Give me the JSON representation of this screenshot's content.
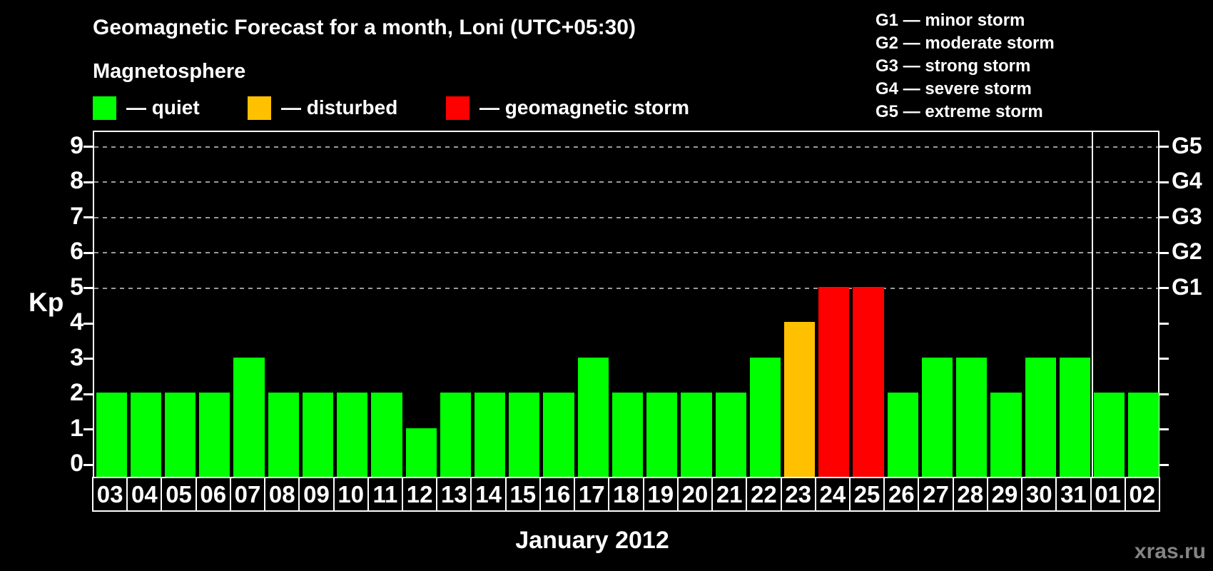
{
  "header": {
    "title": "Geomagnetic Forecast for a month, Loni (UTC+05:30)",
    "subtitle": "Magnetosphere"
  },
  "legend": {
    "items": [
      {
        "name": "quiet",
        "label": "— quiet",
        "color": "#00ff00"
      },
      {
        "name": "disturbed",
        "label": "— disturbed",
        "color": "#ffc000"
      },
      {
        "name": "storm",
        "label": "— geomagnetic storm",
        "color": "#ff0000"
      }
    ]
  },
  "g_scale_legend": {
    "lines": [
      "G1 — minor storm",
      "G2 — moderate storm",
      "G3 — strong storm",
      "G4 — severe storm",
      "G5 — extreme storm"
    ]
  },
  "watermark": "xras.ru",
  "chart_data": {
    "type": "bar",
    "title": "Geomagnetic Forecast for a month, Loni (UTC+05:30)",
    "xlabel": "January 2012",
    "ylabel": "Kp",
    "ylim": [
      0,
      9.4
    ],
    "y_ticks": [
      0,
      1,
      2,
      3,
      4,
      5,
      6,
      7,
      8,
      9
    ],
    "gridlines": [
      5,
      6,
      7,
      8,
      9
    ],
    "grid_style": "dashed",
    "legend_position": "top",
    "right_axis_labels": [
      {
        "text": "G1",
        "kp": 5
      },
      {
        "text": "G2",
        "kp": 6
      },
      {
        "text": "G3",
        "kp": 7
      },
      {
        "text": "G4",
        "kp": 8
      },
      {
        "text": "G5",
        "kp": 9
      }
    ],
    "categories": [
      "03",
      "04",
      "05",
      "06",
      "07",
      "08",
      "09",
      "10",
      "11",
      "12",
      "13",
      "14",
      "15",
      "16",
      "17",
      "18",
      "19",
      "20",
      "21",
      "22",
      "23",
      "24",
      "25",
      "26",
      "27",
      "28",
      "29",
      "30",
      "31",
      "01",
      "02"
    ],
    "values": [
      2,
      2,
      2,
      2,
      3,
      2,
      2,
      2,
      2,
      1,
      2,
      2,
      2,
      2,
      3,
      2,
      2,
      2,
      2,
      3,
      4,
      5,
      5,
      2,
      3,
      3,
      2,
      3,
      3,
      2,
      2
    ],
    "month_boundary_index": 29,
    "color_rules": {
      "quiet_max_kp": 3,
      "disturbed_kp": 4,
      "storm_min_kp": 5
    }
  }
}
